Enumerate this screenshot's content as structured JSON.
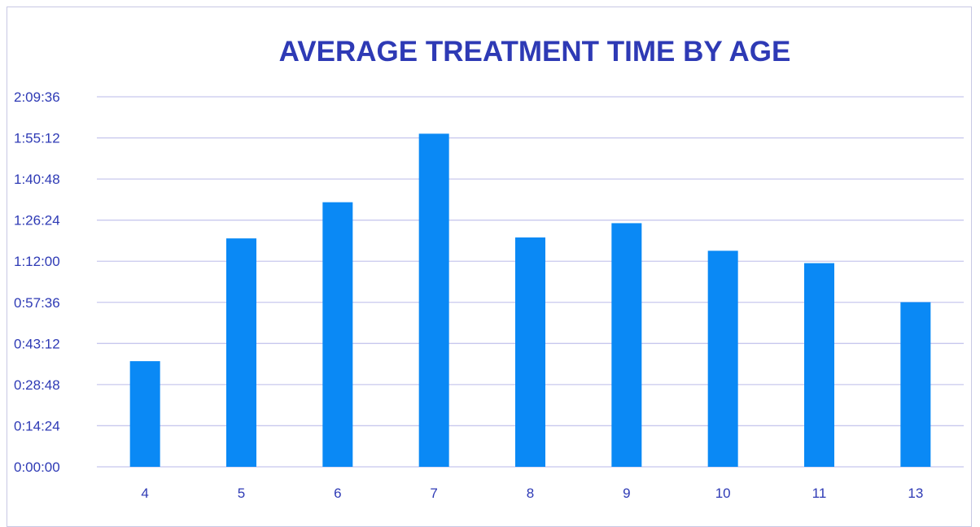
{
  "colors": {
    "bar": "#0A89F5",
    "gridline": "#c8c8ee",
    "text": "#2E3AB5",
    "border": "#c8c8e4"
  },
  "chart_data": {
    "type": "bar",
    "title": "AVERAGE TREATMENT TIME BY AGE",
    "xlabel": "",
    "ylabel": "",
    "categories": [
      "4",
      "5",
      "6",
      "7",
      "8",
      "9",
      "10",
      "11",
      "13"
    ],
    "values_seconds": [
      2220,
      4800,
      5560,
      7000,
      4820,
      5120,
      4540,
      4280,
      3460
    ],
    "values": [
      "0:37:00",
      "1:20:00",
      "1:32:40",
      "1:56:40",
      "1:20:20",
      "1:25:20",
      "1:15:40",
      "1:11:20",
      "0:57:40"
    ],
    "y_ticks": [
      "0:00:00",
      "0:14:24",
      "0:28:48",
      "0:43:12",
      "0:57:36",
      "1:12:00",
      "1:26:24",
      "1:40:48",
      "1:55:12",
      "2:09:36"
    ],
    "ylim_seconds": [
      0,
      7776
    ],
    "grid": true,
    "legend": "none"
  }
}
